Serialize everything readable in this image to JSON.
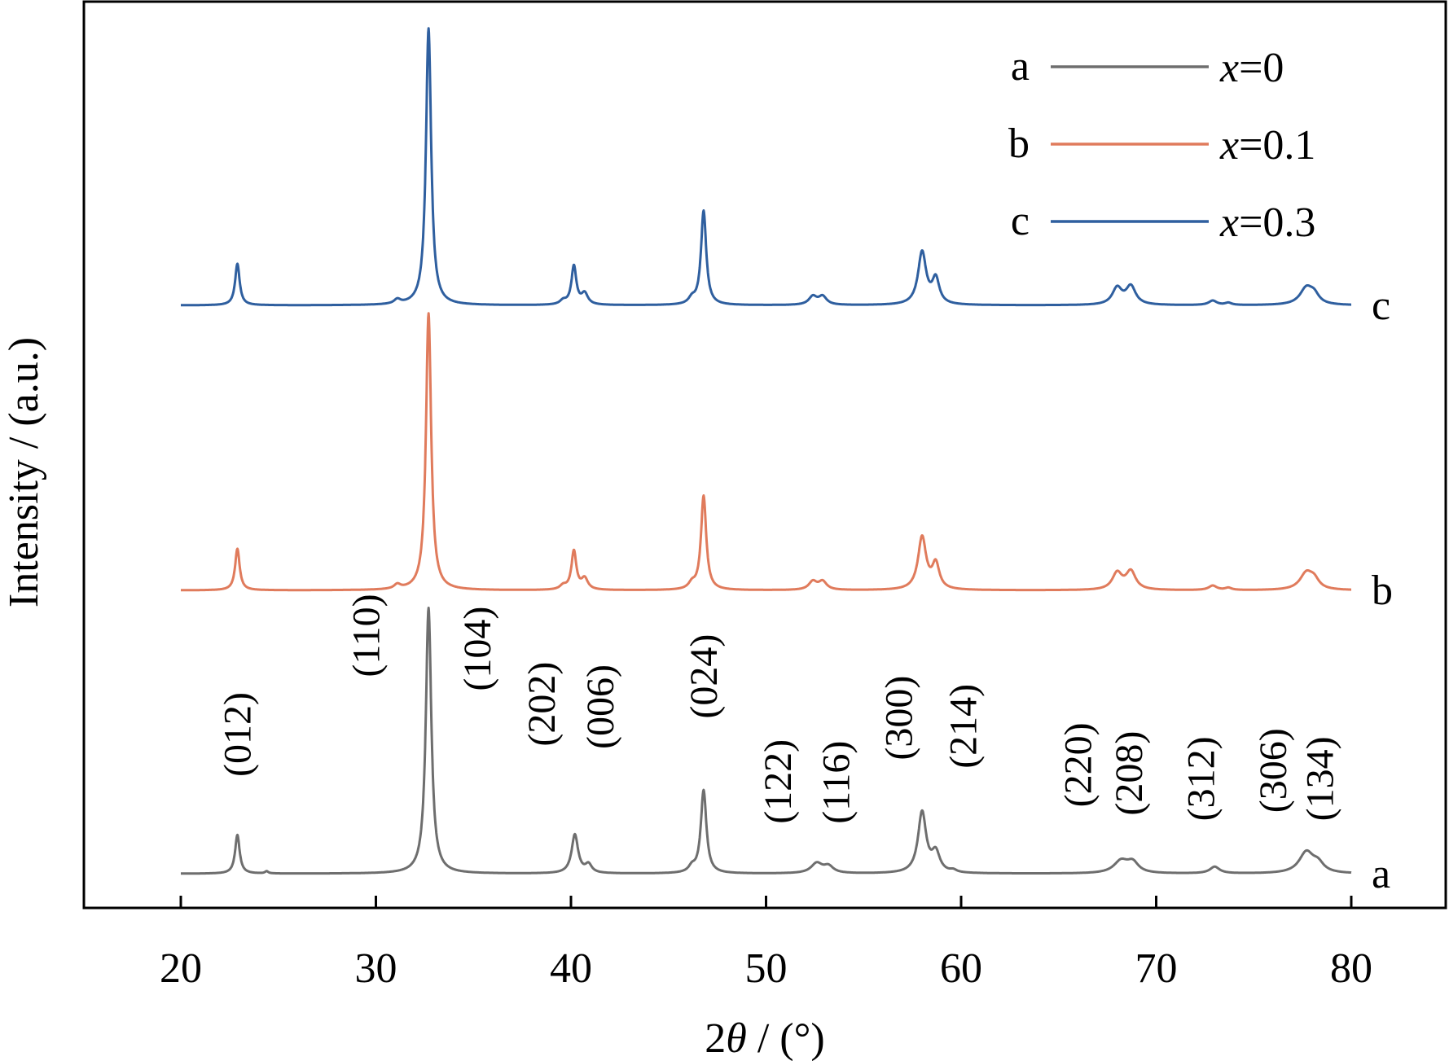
{
  "chart_data": {
    "type": "line",
    "xlabel_parts": {
      "prefix": "2",
      "symbol": "θ",
      "suffix": " / (°)"
    },
    "ylabel": "Intensity / (a.u.)",
    "xlim": [
      20,
      80
    ],
    "x_ticks": [
      20,
      30,
      40,
      50,
      60,
      70,
      80
    ],
    "y_ticks_shown": false,
    "grid": false,
    "legend_position": "top-right",
    "series": [
      {
        "id": "a",
        "name": "x=0",
        "legend_key": "a",
        "legend_var": "x",
        "legend_value": "=0",
        "end_label": "a",
        "color": "#6e6e6e",
        "offset": 0,
        "peaks": [
          {
            "x": 22.9,
            "h": 0.07,
            "w": 0.14
          },
          {
            "x": 24.4,
            "h": 0.004,
            "w": 0.1
          },
          {
            "x": 32.7,
            "h": 0.48,
            "w": 0.17
          },
          {
            "x": 40.2,
            "h": 0.07,
            "w": 0.2
          },
          {
            "x": 40.9,
            "h": 0.015,
            "w": 0.2
          },
          {
            "x": 46.8,
            "h": 0.15,
            "w": 0.17
          },
          {
            "x": 46.2,
            "h": 0.01,
            "w": 0.2
          },
          {
            "x": 52.6,
            "h": 0.018,
            "w": 0.35
          },
          {
            "x": 53.2,
            "h": 0.012,
            "w": 0.3
          },
          {
            "x": 58.0,
            "h": 0.11,
            "w": 0.25
          },
          {
            "x": 58.7,
            "h": 0.035,
            "w": 0.25
          },
          {
            "x": 59.6,
            "h": 0.004,
            "w": 0.2
          },
          {
            "x": 68.2,
            "h": 0.022,
            "w": 0.45
          },
          {
            "x": 68.8,
            "h": 0.018,
            "w": 0.35
          },
          {
            "x": 73.0,
            "h": 0.012,
            "w": 0.3
          },
          {
            "x": 77.7,
            "h": 0.038,
            "w": 0.45
          },
          {
            "x": 78.3,
            "h": 0.015,
            "w": 0.35
          }
        ]
      },
      {
        "id": "b",
        "name": "x=0.1",
        "legend_key": "b",
        "legend_var": "x",
        "legend_value": "=0.1",
        "end_label": "b",
        "color": "#e07b5c",
        "offset": 1,
        "peaks": [
          {
            "x": 22.9,
            "h": 0.075,
            "w": 0.14
          },
          {
            "x": 31.1,
            "h": 0.008,
            "w": 0.2
          },
          {
            "x": 32.7,
            "h": 0.5,
            "w": 0.16
          },
          {
            "x": 39.6,
            "h": 0.007,
            "w": 0.2
          },
          {
            "x": 40.15,
            "h": 0.07,
            "w": 0.15
          },
          {
            "x": 40.7,
            "h": 0.02,
            "w": 0.2
          },
          {
            "x": 46.8,
            "h": 0.17,
            "w": 0.16
          },
          {
            "x": 46.2,
            "h": 0.01,
            "w": 0.2
          },
          {
            "x": 52.4,
            "h": 0.015,
            "w": 0.25
          },
          {
            "x": 52.9,
            "h": 0.015,
            "w": 0.25
          },
          {
            "x": 58.0,
            "h": 0.095,
            "w": 0.25
          },
          {
            "x": 58.7,
            "h": 0.045,
            "w": 0.22
          },
          {
            "x": 68.0,
            "h": 0.03,
            "w": 0.3
          },
          {
            "x": 68.7,
            "h": 0.033,
            "w": 0.3
          },
          {
            "x": 72.9,
            "h": 0.008,
            "w": 0.25
          },
          {
            "x": 73.7,
            "h": 0.004,
            "w": 0.2
          },
          {
            "x": 77.7,
            "h": 0.03,
            "w": 0.4
          },
          {
            "x": 78.1,
            "h": 0.015,
            "w": 0.3
          }
        ]
      },
      {
        "id": "c",
        "name": "x=0.3",
        "legend_key": "c",
        "legend_var": "x",
        "legend_value": "=0.3",
        "end_label": "c",
        "color": "#2f5f9f",
        "offset": 2,
        "peaks": [
          {
            "x": 22.9,
            "h": 0.075,
            "w": 0.14
          },
          {
            "x": 31.1,
            "h": 0.008,
            "w": 0.2
          },
          {
            "x": 32.7,
            "h": 0.5,
            "w": 0.16
          },
          {
            "x": 39.6,
            "h": 0.007,
            "w": 0.2
          },
          {
            "x": 40.15,
            "h": 0.07,
            "w": 0.15
          },
          {
            "x": 40.7,
            "h": 0.02,
            "w": 0.2
          },
          {
            "x": 46.8,
            "h": 0.17,
            "w": 0.16
          },
          {
            "x": 46.2,
            "h": 0.01,
            "w": 0.2
          },
          {
            "x": 52.4,
            "h": 0.015,
            "w": 0.25
          },
          {
            "x": 52.9,
            "h": 0.015,
            "w": 0.25
          },
          {
            "x": 58.0,
            "h": 0.095,
            "w": 0.25
          },
          {
            "x": 58.7,
            "h": 0.045,
            "w": 0.22
          },
          {
            "x": 68.0,
            "h": 0.03,
            "w": 0.3
          },
          {
            "x": 68.7,
            "h": 0.033,
            "w": 0.3
          },
          {
            "x": 72.9,
            "h": 0.008,
            "w": 0.25
          },
          {
            "x": 73.7,
            "h": 0.004,
            "w": 0.2
          },
          {
            "x": 77.7,
            "h": 0.03,
            "w": 0.4
          },
          {
            "x": 78.1,
            "h": 0.015,
            "w": 0.3
          }
        ]
      }
    ],
    "annotations": [
      {
        "text": "(012)",
        "x": 22.9,
        "y": 0.175
      },
      {
        "text": "(110)",
        "x": 29.5,
        "y": 0.355
      },
      {
        "text": "(104)",
        "x": 35.2,
        "y": 0.33
      },
      {
        "text": "(202)",
        "x": 38.5,
        "y": 0.23
      },
      {
        "text": "(006)",
        "x": 41.5,
        "y": 0.225
      },
      {
        "text": "(024)",
        "x": 46.8,
        "y": 0.28
      },
      {
        "text": "(122)",
        "x": 50.6,
        "y": 0.09
      },
      {
        "text": "(116)",
        "x": 53.6,
        "y": 0.09
      },
      {
        "text": "(300)",
        "x": 56.8,
        "y": 0.205
      },
      {
        "text": "(214)",
        "x": 60.1,
        "y": 0.19
      },
      {
        "text": "(220)",
        "x": 66.0,
        "y": 0.12
      },
      {
        "text": "(208)",
        "x": 68.6,
        "y": 0.105
      },
      {
        "text": "(312)",
        "x": 72.3,
        "y": 0.095
      },
      {
        "text": "(306)",
        "x": 76.0,
        "y": 0.11
      },
      {
        "text": "(134)",
        "x": 78.4,
        "y": 0.095
      }
    ]
  }
}
